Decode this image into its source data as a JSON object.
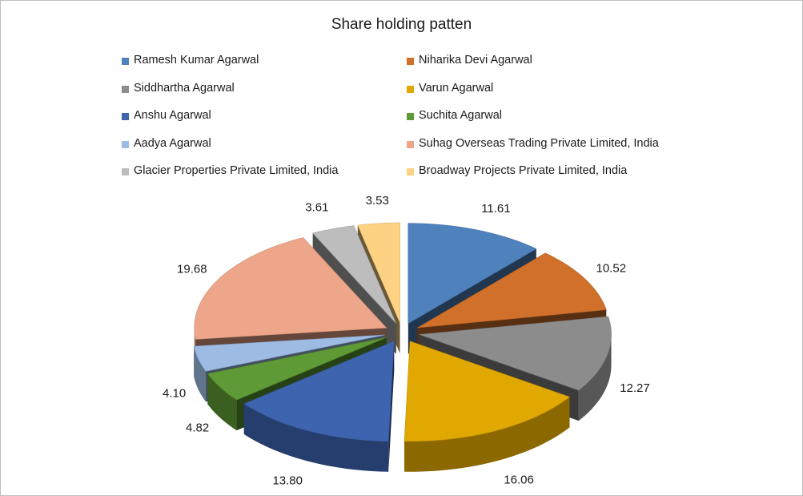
{
  "chart_data": {
    "type": "pie",
    "title": "Share holding patten",
    "legend_position": "top",
    "exploded": true,
    "three_d": true,
    "categories": [
      "Ramesh Kumar Agarwal",
      "Niharika Devi Agarwal",
      "Siddhartha Agarwal",
      "Varun Agarwal",
      "Anshu Agarwal",
      "Suchita Agarwal",
      "Aadya Agarwal",
      "Suhag Overseas Trading Private Limited, India",
      "Glacier Properties Private Limited, India",
      "Broadway Projects Private Limited, India"
    ],
    "values": [
      11.61,
      10.52,
      12.27,
      16.06,
      13.8,
      4.82,
      4.1,
      19.68,
      3.61,
      3.53
    ],
    "value_labels": [
      "11.61",
      "10.52",
      "12.27",
      "16.06",
      "13.80",
      "4.82",
      "4.10",
      "19.68",
      "3.61",
      "3.53"
    ],
    "colors": [
      "#4f81bd",
      "#d0702a",
      "#8c8c8c",
      "#e0a800",
      "#3e64b0",
      "#5e9a35",
      "#9dbbe3",
      "#eea68a",
      "#bdbdbd",
      "#fdd283"
    ]
  }
}
